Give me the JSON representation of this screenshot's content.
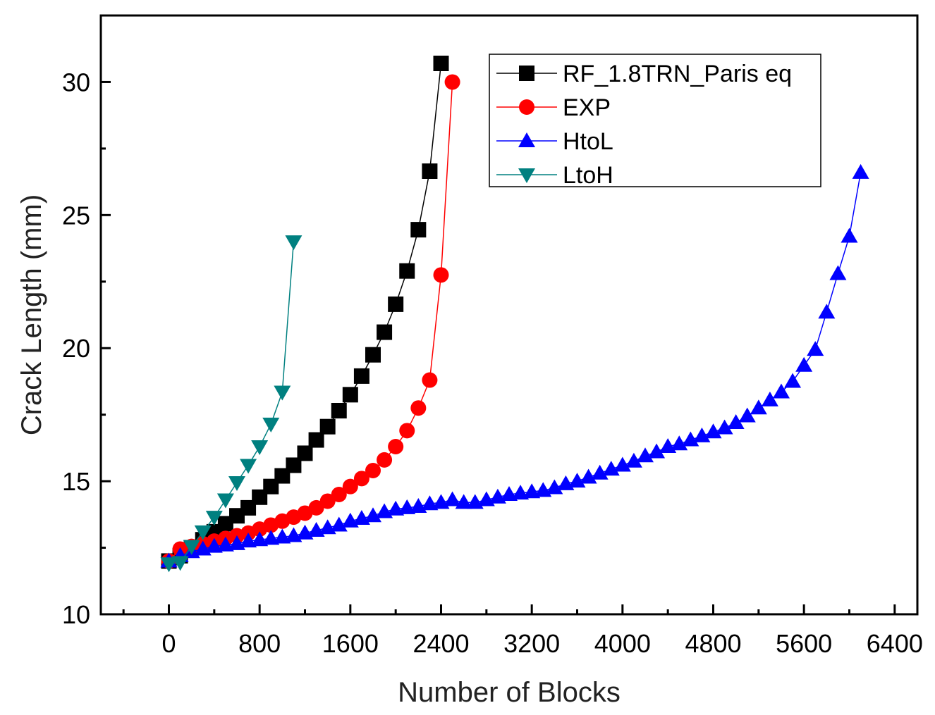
{
  "chart_data": {
    "type": "line",
    "xlabel": "Number of Blocks",
    "ylabel": "Crack Length (mm)",
    "xlim": [
      -600,
      6600
    ],
    "ylim": [
      10,
      32.5
    ],
    "xticks": [
      0,
      800,
      1600,
      2400,
      3200,
      4000,
      4800,
      5600,
      6400
    ],
    "yticks": [
      10,
      15,
      20,
      25,
      30
    ],
    "legend_position": "top-right",
    "series": [
      {
        "name": "RF_1.8TRN_Paris eq",
        "color": "#000000",
        "marker": "square",
        "x": [
          0,
          100,
          200,
          300,
          400,
          500,
          600,
          700,
          800,
          900,
          1000,
          1100,
          1200,
          1300,
          1400,
          1500,
          1600,
          1700,
          1800,
          1900,
          2000,
          2100,
          2200,
          2300,
          2400
        ],
        "y": [
          12.0,
          12.2,
          12.5,
          12.8,
          13.1,
          13.4,
          13.7,
          14.0,
          14.4,
          14.8,
          15.2,
          15.6,
          16.05,
          16.55,
          17.05,
          17.65,
          18.25,
          18.95,
          19.75,
          20.6,
          21.65,
          22.9,
          24.45,
          26.65,
          30.7
        ]
      },
      {
        "name": "EXP",
        "color": "#ff0000",
        "marker": "circle",
        "x": [
          0,
          100,
          200,
          300,
          400,
          500,
          600,
          700,
          800,
          900,
          1000,
          1100,
          1200,
          1300,
          1400,
          1500,
          1600,
          1700,
          1800,
          1900,
          2000,
          2100,
          2200,
          2300,
          2400,
          2500
        ],
        "y": [
          12.0,
          12.45,
          12.55,
          12.65,
          12.75,
          12.85,
          12.95,
          13.05,
          13.2,
          13.35,
          13.5,
          13.65,
          13.8,
          14.0,
          14.25,
          14.5,
          14.8,
          15.1,
          15.4,
          15.8,
          16.3,
          16.9,
          17.75,
          18.8,
          22.75,
          30.0
        ]
      },
      {
        "name": "HtoL",
        "color": "#0000ff",
        "marker": "triangle-up",
        "x": [
          0,
          100,
          200,
          300,
          400,
          500,
          600,
          700,
          800,
          900,
          1000,
          1100,
          1200,
          1300,
          1400,
          1500,
          1600,
          1700,
          1800,
          1900,
          2000,
          2100,
          2200,
          2300,
          2400,
          2500,
          2600,
          2700,
          2800,
          2900,
          3000,
          3100,
          3200,
          3300,
          3400,
          3500,
          3600,
          3700,
          3800,
          3900,
          4000,
          4100,
          4200,
          4300,
          4400,
          4500,
          4600,
          4700,
          4800,
          4900,
          5000,
          5100,
          5200,
          5300,
          5400,
          5500,
          5600,
          5700,
          5800,
          5900,
          6000,
          6100
        ],
        "y": [
          12.0,
          12.2,
          12.35,
          12.45,
          12.55,
          12.6,
          12.65,
          12.75,
          12.8,
          12.85,
          12.9,
          12.95,
          13.05,
          13.15,
          13.25,
          13.35,
          13.5,
          13.6,
          13.7,
          13.85,
          13.95,
          14.0,
          14.05,
          14.15,
          14.2,
          14.3,
          14.2,
          14.2,
          14.3,
          14.4,
          14.5,
          14.55,
          14.6,
          14.65,
          14.75,
          14.9,
          15.0,
          15.15,
          15.3,
          15.45,
          15.6,
          15.75,
          15.95,
          16.1,
          16.3,
          16.4,
          16.55,
          16.7,
          16.85,
          17.0,
          17.2,
          17.45,
          17.75,
          18.05,
          18.35,
          18.75,
          19.35,
          19.95,
          21.35,
          22.8,
          24.2,
          26.6
        ]
      },
      {
        "name": "LtoH",
        "color": "#008080",
        "marker": "triangle-down",
        "x": [
          0,
          100,
          200,
          300,
          400,
          500,
          600,
          700,
          800,
          900,
          1000,
          1100
        ],
        "y": [
          11.9,
          11.95,
          12.55,
          13.1,
          13.65,
          14.3,
          14.95,
          15.6,
          16.3,
          17.15,
          18.35,
          24.0
        ]
      }
    ]
  }
}
